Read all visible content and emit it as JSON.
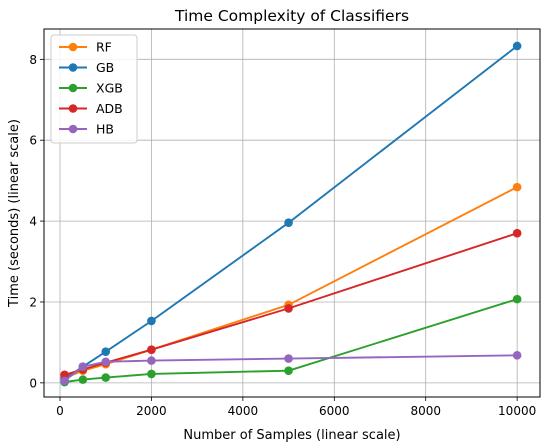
{
  "chart_data": {
    "type": "line",
    "title": "Time Complexity of Classifiers",
    "xlabel": "Number of Samples (linear scale)",
    "ylabel": "Time (seconds) (linear scale)",
    "xlim": [
      -350,
      10500
    ],
    "ylim": [
      -0.35,
      8.75
    ],
    "xticks": [
      0,
      2000,
      4000,
      6000,
      8000,
      10000
    ],
    "yticks": [
      0,
      2,
      4,
      6,
      8
    ],
    "grid": true,
    "legend_position": "top-left",
    "x": [
      100,
      500,
      1000,
      2000,
      5000,
      10000
    ],
    "series": [
      {
        "name": "RF",
        "color": "#ff7f0e",
        "values": [
          0.12,
          0.3,
          0.46,
          0.82,
          1.93,
          4.84
        ]
      },
      {
        "name": "GB",
        "color": "#1f77b4",
        "values": [
          0.1,
          0.4,
          0.77,
          1.53,
          3.96,
          8.33
        ]
      },
      {
        "name": "XGB",
        "color": "#2ca02c",
        "values": [
          0.02,
          0.08,
          0.13,
          0.22,
          0.3,
          2.07
        ]
      },
      {
        "name": "ADB",
        "color": "#d62728",
        "values": [
          0.2,
          0.33,
          0.5,
          0.82,
          1.84,
          3.7
        ]
      },
      {
        "name": "HB",
        "color": "#9467bd",
        "values": [
          0.05,
          0.4,
          0.52,
          0.55,
          0.6,
          0.68
        ]
      }
    ]
  }
}
